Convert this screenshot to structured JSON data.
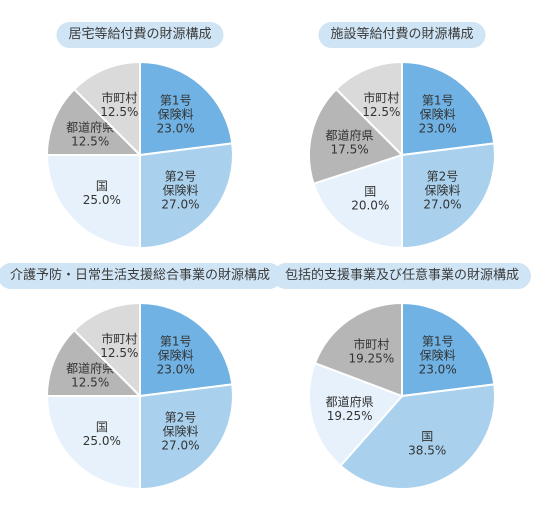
{
  "colors": {
    "title_bg": "#cfe4f4",
    "insurance_1": "#6fb2e3",
    "insurance_2": "#a9d1ee",
    "national": "#e7f1fb",
    "prefecture": "#b6b6b6",
    "municipality": "#dadada",
    "edge": "#ffffff"
  },
  "chart_data": [
    {
      "type": "pie",
      "title": "居宅等給付費の財源構成",
      "slices": [
        {
          "label": [
            "第1号",
            "保険料"
          ],
          "value_label": "23.0%",
          "value": 23.0,
          "color_key": "insurance_1"
        },
        {
          "label": [
            "第2号",
            "保険料"
          ],
          "value_label": "27.0%",
          "value": 27.0,
          "color_key": "insurance_2"
        },
        {
          "label": [
            "国"
          ],
          "value_label": "25.0%",
          "value": 25.0,
          "color_key": "national"
        },
        {
          "label": [
            "都道府県"
          ],
          "value_label": "12.5%",
          "value": 12.5,
          "color_key": "prefecture"
        },
        {
          "label": [
            "市町村"
          ],
          "value_label": "12.5%",
          "value": 12.5,
          "color_key": "municipality"
        }
      ]
    },
    {
      "type": "pie",
      "title": "施設等給付費の財源構成",
      "slices": [
        {
          "label": [
            "第1号",
            "保険料"
          ],
          "value_label": "23.0%",
          "value": 23.0,
          "color_key": "insurance_1"
        },
        {
          "label": [
            "第2号",
            "保険料"
          ],
          "value_label": "27.0%",
          "value": 27.0,
          "color_key": "insurance_2"
        },
        {
          "label": [
            "国"
          ],
          "value_label": "20.0%",
          "value": 20.0,
          "color_key": "national"
        },
        {
          "label": [
            "都道府県"
          ],
          "value_label": "17.5%",
          "value": 17.5,
          "color_key": "prefecture"
        },
        {
          "label": [
            "市町村"
          ],
          "value_label": "12.5%",
          "value": 12.5,
          "color_key": "municipality"
        }
      ]
    },
    {
      "type": "pie",
      "title": "介護予防・日常生活支援総合事業の財源構成",
      "slices": [
        {
          "label": [
            "第1号",
            "保険料"
          ],
          "value_label": "23.0%",
          "value": 23.0,
          "color_key": "insurance_1"
        },
        {
          "label": [
            "第2号",
            "保険料"
          ],
          "value_label": "27.0%",
          "value": 27.0,
          "color_key": "insurance_2"
        },
        {
          "label": [
            "国"
          ],
          "value_label": "25.0%",
          "value": 25.0,
          "color_key": "national"
        },
        {
          "label": [
            "都道府県"
          ],
          "value_label": "12.5%",
          "value": 12.5,
          "color_key": "prefecture"
        },
        {
          "label": [
            "市町村"
          ],
          "value_label": "12.5%",
          "value": 12.5,
          "color_key": "municipality"
        }
      ]
    },
    {
      "type": "pie",
      "title": "包括的支援事業及び任意事業の財源構成",
      "slices": [
        {
          "label": [
            "第1号",
            "保険料"
          ],
          "value_label": "23.0%",
          "value": 23.0,
          "color_key": "insurance_1"
        },
        {
          "label": [
            "国"
          ],
          "value_label": "38.5%",
          "value": 38.5,
          "color_key": "insurance_2"
        },
        {
          "label": [
            "都道府県"
          ],
          "value_label": "19.25%",
          "value": 19.25,
          "color_key": "national"
        },
        {
          "label": [
            "市町村"
          ],
          "value_label": "19.25%",
          "value": 19.25,
          "color_key": "prefecture"
        }
      ]
    }
  ]
}
